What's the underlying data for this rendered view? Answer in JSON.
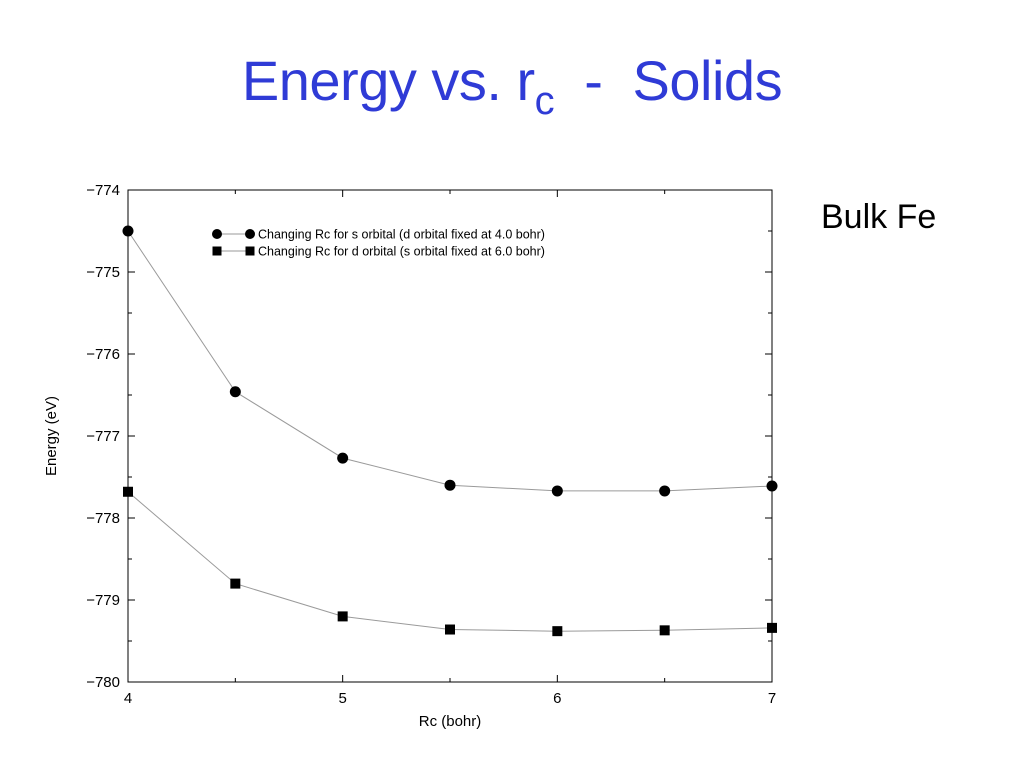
{
  "slide": {
    "title_main": "Energy vs. r",
    "title_sub": "c",
    "title_rest": "  -  Solids",
    "side_label": "Bulk Fe",
    "title_color": "#2f3bd6"
  },
  "chart_data": {
    "type": "line",
    "xlabel": "Rc (bohr)",
    "ylabel": "Energy (eV)",
    "xlim": [
      4,
      7
    ],
    "ylim": [
      -780,
      -774
    ],
    "xticks": [
      4,
      5,
      6,
      7
    ],
    "xtick_labels": [
      "4",
      "5",
      "6",
      "7"
    ],
    "yticks": [
      -774,
      -775,
      -776,
      -777,
      -778,
      -779,
      -780
    ],
    "ytick_labels": [
      "−774",
      "−775",
      "−776",
      "−777",
      "−778",
      "−779",
      "−780"
    ],
    "grid": false,
    "legend_position": "top-left",
    "x": [
      4.0,
      4.5,
      5.0,
      5.5,
      6.0,
      6.5,
      7.0
    ],
    "series": [
      {
        "name": "Changing Rc for s orbital (d orbital fixed at 4.0 bohr)",
        "marker": "circle",
        "values": [
          -774.5,
          -776.46,
          -777.27,
          -777.6,
          -777.67,
          -777.67,
          -777.61
        ]
      },
      {
        "name": "Changing Rc for d orbital (s orbital fixed at 6.0 bohr)",
        "marker": "square",
        "values": [
          -777.68,
          -778.8,
          -779.2,
          -779.36,
          -779.38,
          -779.37,
          -779.34
        ]
      }
    ],
    "line_color": "#9a9a9a",
    "marker_color": "#000000"
  }
}
